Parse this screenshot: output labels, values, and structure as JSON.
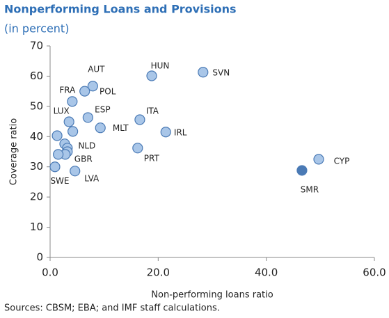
{
  "chart_data": {
    "type": "scatter",
    "title": "Nonperforming Loans and Provisions",
    "subtitle": "(in percent)",
    "x_label": "Non-performing loans ratio",
    "y_label": "Coverage ratio",
    "source": "Sources: CBSM; EBA; and IMF staff calculations.",
    "labels": [
      "SVN",
      "HUN",
      "AUT",
      "POL",
      "FRA",
      "ESP",
      "ITA",
      "LUX",
      "MLT",
      null,
      "IRL",
      null,
      null,
      null,
      "PRT",
      "NLD",
      "GBR",
      null,
      "SWE",
      "LVA",
      "CYP",
      "SMR"
    ],
    "x": [
      28.3,
      18.8,
      7.9,
      6.4,
      4.1,
      7.0,
      16.6,
      3.5,
      9.3,
      4.2,
      21.4,
      1.3,
      2.7,
      3.2,
      16.2,
      3.2,
      2.8,
      1.5,
      0.9,
      4.6,
      49.7,
      46.6
    ],
    "values": [
      61.3,
      60.1,
      56.7,
      55.0,
      51.6,
      46.3,
      45.6,
      44.9,
      42.9,
      41.7,
      41.5,
      40.3,
      37.6,
      36.2,
      36.2,
      35.0,
      34.1,
      34.1,
      30.0,
      28.6,
      32.5,
      28.8
    ],
    "colors": [
      "#a9c6e8",
      "#a9c6e8",
      "#a9c6e8",
      "#a9c6e8",
      "#a9c6e8",
      "#a9c6e8",
      "#a9c6e8",
      "#a9c6e8",
      "#a9c6e8",
      "#a9c6e8",
      "#a9c6e8",
      "#a9c6e8",
      "#a9c6e8",
      "#a9c6e8",
      "#a9c6e8",
      "#a9c6e8",
      "#a9c6e8",
      "#a9c6e8",
      "#a9c6e8",
      "#a9c6e8",
      "#a9c6e8",
      "#4a7ab5"
    ],
    "xlim": [
      0,
      60
    ],
    "xticks": [
      {
        "value": 0,
        "label": "0.0"
      },
      {
        "value": 20,
        "label": "20.0"
      },
      {
        "value": 40,
        "label": "40.0"
      },
      {
        "value": 60,
        "label": "60.0"
      }
    ],
    "ylim": [
      0,
      70
    ],
    "yticks": [
      0,
      10,
      20,
      30,
      40,
      50,
      60,
      70
    ]
  }
}
